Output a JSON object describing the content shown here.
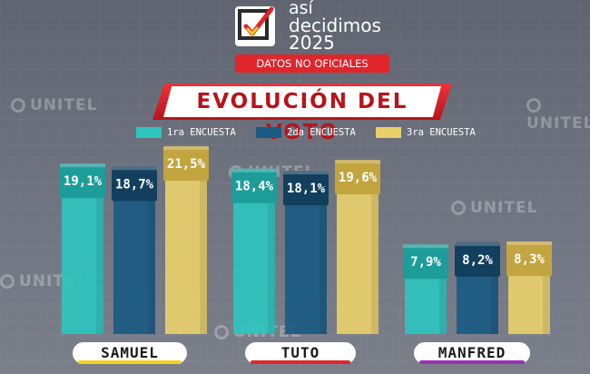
{
  "brand": {
    "line1": "así",
    "line2": "decidimos",
    "line3": "2025",
    "logo_icon": "checkmark-ballot-icon"
  },
  "badge": "DATOS NO OFICIALES",
  "watermark_text": "UNITEL",
  "colors": {
    "series1": "#2fc4bf",
    "series2": "#1b5a83",
    "series3": "#e8cf6b",
    "title_red": "#d8252b",
    "samuel_line": "#f2d21b",
    "tuto_line": "#e0252b",
    "manfred_line": "#9a2fb8"
  },
  "chart_data": {
    "type": "bar",
    "title": "EVOLUCIÓN DEL VOTO",
    "categories": [
      "SAMUEL",
      "TUTO",
      "MANFRED"
    ],
    "series": [
      {
        "name": "1ra ENCUESTA",
        "values": [
          19.1,
          18.4,
          7.9
        ],
        "labels": [
          "19,1%",
          "18,4%",
          "7,9%"
        ]
      },
      {
        "name": "2da ENCUESTA",
        "values": [
          18.7,
          18.1,
          8.2
        ],
        "labels": [
          "18,7%",
          "18,1%",
          "8,2%"
        ]
      },
      {
        "name": "3ra ENCUESTA",
        "values": [
          21.5,
          19.6,
          8.3
        ],
        "labels": [
          "21,5%",
          "19,6%",
          "8,3%"
        ]
      }
    ],
    "legend_position": "top",
    "xlabel": "",
    "ylabel": "",
    "grid": false
  }
}
